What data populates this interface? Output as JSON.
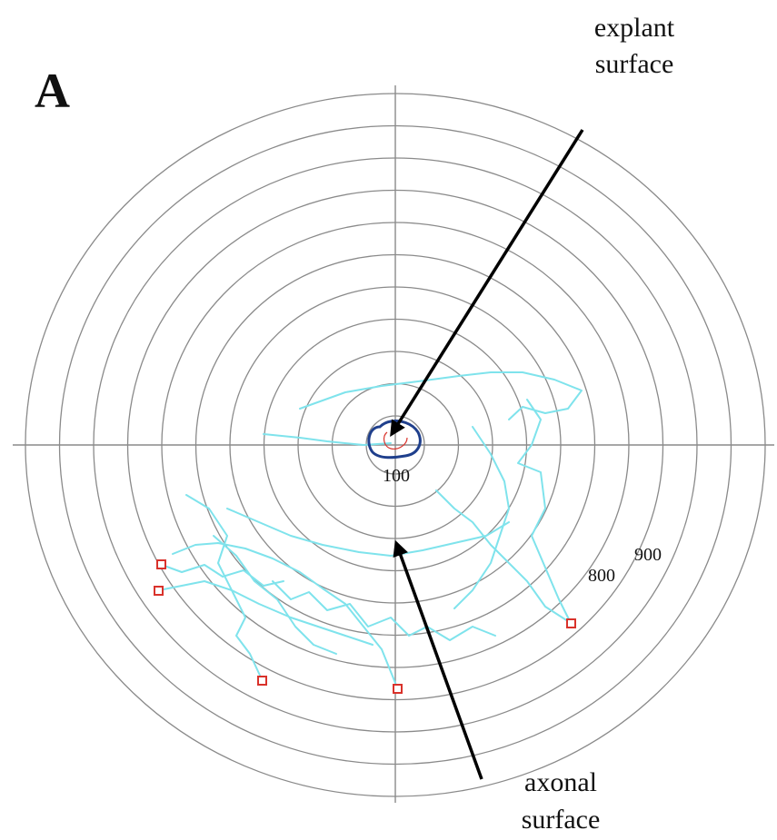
{
  "figure": {
    "panel_label": "A",
    "annotation_top": {
      "line1": "explant",
      "line2": "surface"
    },
    "annotation_bottom": {
      "line1": "axonal",
      "line2": "surface"
    },
    "ring_labels": {
      "inner": "100",
      "outer_1": "800",
      "outer_2": "900"
    }
  },
  "colors": {
    "grid": "#8a8a8a",
    "axes": "#8a8a8a",
    "arrow": "#000000",
    "traces": "#7fe3ec",
    "explant_outline": "#1f3f8c",
    "endpoint_markers": "#d9322b",
    "text": "#111111"
  }
}
